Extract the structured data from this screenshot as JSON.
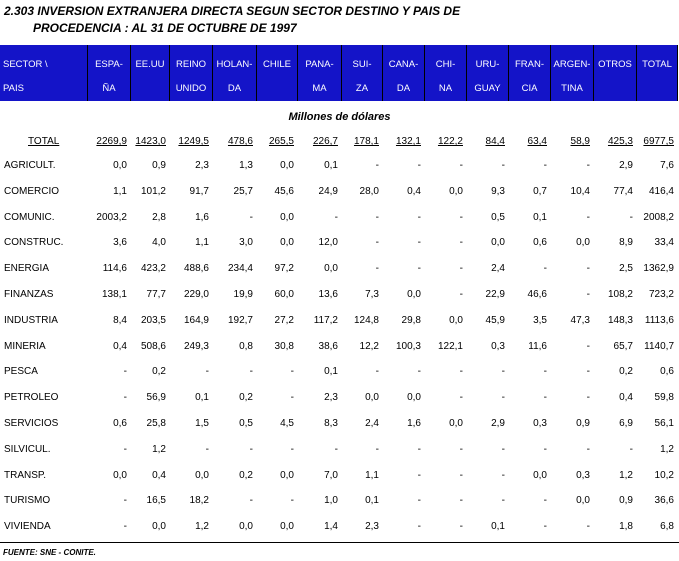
{
  "header": {
    "title_lines": [
      "2.303  INVERSION EXTRANJERA DIRECTA SEGUN  SECTOR DESTINO Y PAIS DE",
      "PROCEDENCIA : AL 31 DE OCTUBRE DE 1997"
    ]
  },
  "table": {
    "columns": [
      [
        "SECTOR \\",
        "PAIS"
      ],
      [
        "ESPA-",
        "ÑA"
      ],
      [
        "EE.UU",
        ""
      ],
      [
        "REINO",
        "UNIDO"
      ],
      [
        "HOLAN-",
        "DA"
      ],
      [
        "CHILE",
        ""
      ],
      [
        "PANA-",
        "MA"
      ],
      [
        "SUI-",
        "ZA"
      ],
      [
        "CANA-",
        "DA"
      ],
      [
        "CHI-",
        "NA"
      ],
      [
        "URU-",
        "GUAY"
      ],
      [
        "FRAN-",
        "CIA"
      ],
      [
        "ARGEN-",
        "TINA"
      ],
      [
        "OTROS",
        ""
      ],
      [
        "TOTAL",
        ""
      ]
    ],
    "unit": "Millones de dólares",
    "total_row": [
      "TOTAL",
      "2269,9",
      "1423,0",
      "1249,5",
      "478,6",
      "265,5",
      "226,7",
      "178,1",
      "132,1",
      "122,2",
      "84,4",
      "63,4",
      "58,9",
      "425,3",
      "6977,5"
    ],
    "rows": [
      [
        "AGRICULT.",
        "0,0",
        "0,9",
        "2,3",
        "1,3",
        "0,0",
        "0,1",
        "-",
        "-",
        "-",
        "-",
        "-",
        "-",
        "2,9",
        "7,6"
      ],
      [
        "COMERCIO",
        "1,1",
        "101,2",
        "91,7",
        "25,7",
        "45,6",
        "24,9",
        "28,0",
        "0,4",
        "0,0",
        "9,3",
        "0,7",
        "10,4",
        "77,4",
        "416,4"
      ],
      [
        "COMUNIC.",
        "2003,2",
        "2,8",
        "1,6",
        "-",
        "0,0",
        "-",
        "-",
        "-",
        "-",
        "0,5",
        "0,1",
        "-",
        "-",
        "2008,2"
      ],
      [
        "CONSTRUC.",
        "3,6",
        "4,0",
        "1,1",
        "3,0",
        "0,0",
        "12,0",
        "-",
        "-",
        "-",
        "0,0",
        "0,6",
        "0,0",
        "8,9",
        "33,4"
      ],
      [
        "ENERGIA",
        "114,6",
        "423,2",
        "488,6",
        "234,4",
        "97,2",
        "0,0",
        "-",
        "-",
        "-",
        "2,4",
        "-",
        "-",
        "2,5",
        "1362,9"
      ],
      [
        "FINANZAS",
        "138,1",
        "77,7",
        "229,0",
        "19,9",
        "60,0",
        "13,6",
        "7,3",
        "0,0",
        "-",
        "22,9",
        "46,6",
        "-",
        "108,2",
        "723,2"
      ],
      [
        "INDUSTRIA",
        "8,4",
        "203,5",
        "164,9",
        "192,7",
        "27,2",
        "117,2",
        "124,8",
        "29,8",
        "0,0",
        "45,9",
        "3,5",
        "47,3",
        "148,3",
        "1113,6"
      ],
      [
        "MINERIA",
        "0,4",
        "508,6",
        "249,3",
        "0,8",
        "30,8",
        "38,6",
        "12,2",
        "100,3",
        "122,1",
        "0,3",
        "11,6",
        "-",
        "65,7",
        "1140,7"
      ],
      [
        "PESCA",
        "-",
        "0,2",
        "-",
        "-",
        "-",
        "0,1",
        "-",
        "-",
        "-",
        "-",
        "-",
        "-",
        "0,2",
        "0,6"
      ],
      [
        "PETROLEO",
        "-",
        "56,9",
        "0,1",
        "0,2",
        "-",
        "2,3",
        "0,0",
        "0,0",
        "-",
        "-",
        "-",
        "-",
        "0,4",
        "59,8"
      ],
      [
        "SERVICIOS",
        "0,6",
        "25,8",
        "1,5",
        "0,5",
        "4,5",
        "8,3",
        "2,4",
        "1,6",
        "0,0",
        "2,9",
        "0,3",
        "0,9",
        "6,9",
        "56,1"
      ],
      [
        "SILVICUL.",
        "-",
        "1,2",
        "-",
        "-",
        "-",
        "-",
        "-",
        "-",
        "-",
        "-",
        "-",
        "-",
        "-",
        "1,2"
      ],
      [
        "TRANSP.",
        "0,0",
        "0,4",
        "0,0",
        "0,2",
        "0,0",
        "7,0",
        "1,1",
        "-",
        "-",
        "-",
        "0,0",
        "0,3",
        "1,2",
        "10,2"
      ],
      [
        "TURISMO",
        "-",
        "16,5",
        "18,2",
        "-",
        "-",
        "1,0",
        "0,1",
        "-",
        "-",
        "-",
        "-",
        "0,0",
        "0,9",
        "36,6"
      ],
      [
        "VIVIENDA",
        "-",
        "0,0",
        "1,2",
        "0,0",
        "0,0",
        "1,4",
        "2,3",
        "-",
        "-",
        "0,1",
        "-",
        "-",
        "1,8",
        "6,8"
      ]
    ]
  },
  "footer": {
    "source": "FUENTE: SNE - CONITE."
  }
}
